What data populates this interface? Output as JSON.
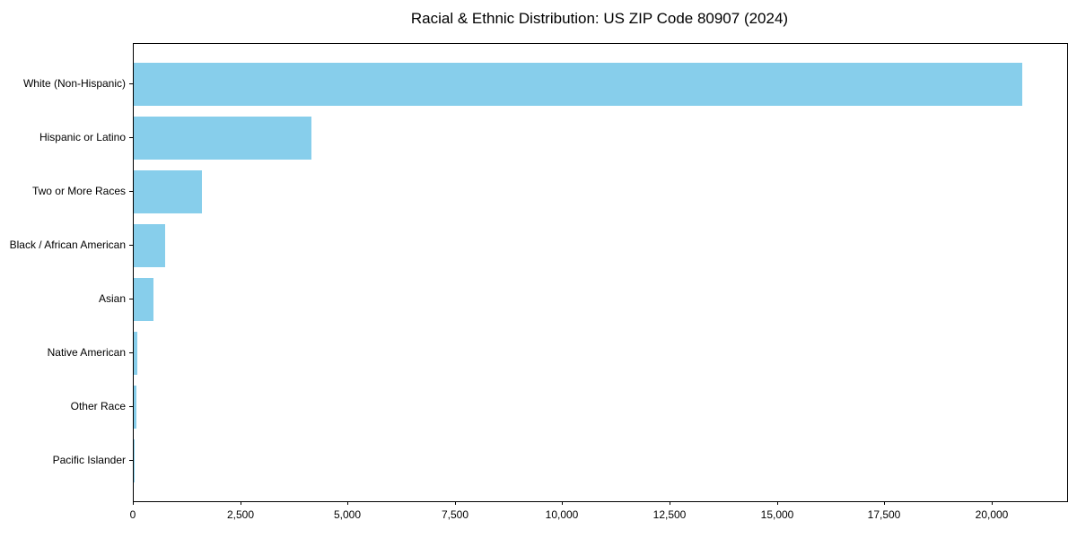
{
  "chart_data": {
    "type": "bar",
    "orientation": "horizontal",
    "title": "Racial & Ethnic Distribution: US ZIP Code 80907 (2024)",
    "categories": [
      "White (Non-Hispanic)",
      "Hispanic or Latino",
      "Two or More Races",
      "Black / African American",
      "Asian",
      "Native American",
      "Other Race",
      "Pacific Islander"
    ],
    "values": [
      20700,
      4130,
      1590,
      730,
      470,
      80,
      55,
      10
    ],
    "bar_color": "#87CEEB",
    "axis_color": "#000000",
    "background_color": "#ffffff",
    "xlim": [
      0,
      21735
    ],
    "x_ticks": [
      0,
      2500,
      5000,
      7500,
      10000,
      12500,
      15000,
      17500,
      20000
    ],
    "x_tick_labels": [
      "0",
      "2,500",
      "5,000",
      "7,500",
      "10,000",
      "12,500",
      "15,000",
      "17,500",
      "20,000"
    ],
    "xlabel": "",
    "ylabel": "",
    "grid": false,
    "legend": null
  }
}
